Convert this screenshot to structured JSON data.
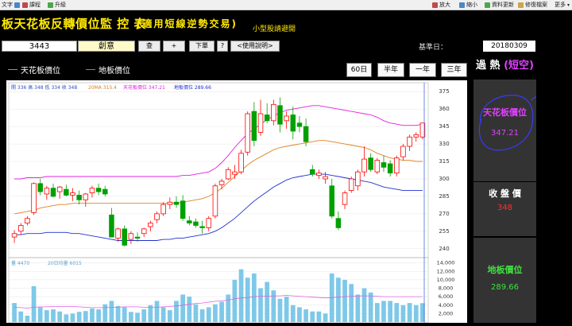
{
  "toolbar": {
    "left": [
      {
        "label": "文字",
        "color": "#4a86c8"
      },
      {
        "label": "課程",
        "color": "#c04a4a"
      },
      {
        "label": "升級",
        "color": "#4aa84a"
      }
    ],
    "right": [
      {
        "label": "放大",
        "color": "#c04a4a"
      },
      {
        "label": "縮小",
        "color": "#4a86c8"
      },
      {
        "label": "資料更新",
        "color": "#4aa84a"
      },
      {
        "label": "修復檔案",
        "color": "#c8a84a"
      },
      {
        "label": "更多"
      }
    ]
  },
  "title": {
    "main": "板天花板反轉價位監 控 表",
    "sub": "(適用短線逆勢交易)",
    "link": "小型股請避開"
  },
  "controls": {
    "code": "3443",
    "name": "創意",
    "btn_query": "查",
    "btn_add": "+",
    "btn_order": "下單",
    "btn_help_q": "?",
    "btn_manual": "<使用說明>",
    "base_label": "基準日：",
    "base_date": "20180309"
  },
  "legend": {
    "ceiling": "天花板價位",
    "floor": "地板價位",
    "ceiling_color": "#ff44ff",
    "floor_color": "#3a9ae0"
  },
  "periods": [
    "60日",
    "半年",
    "一年",
    "三年"
  ],
  "chart_info": {
    "ohlc": "開 336 高 348 低 334 收 348",
    "ma": "20MA 315.4",
    "ceil": "天花板價位 347.21",
    "floor": "地板價位 289.66",
    "vol": "量 4470",
    "vol_ma": "20日均量 6015"
  },
  "panel": {
    "mode_prefix": "過 熱",
    "mode_hl": "(短空)",
    "ceiling_label": "天花板價位",
    "ceiling_value": "347.21",
    "close_label": "收 盤 價",
    "close_value": "348",
    "floor_label": "地板價位",
    "floor_value": "289.66"
  },
  "chart_data": {
    "type": "candlestick",
    "price_ticks": [
      375,
      360,
      345,
      330,
      315,
      300,
      285,
      270,
      255,
      240
    ],
    "volume_ticks": [
      "14,000",
      "12,000",
      "10,000",
      "8,000",
      "6,000",
      "4,000",
      "2,000"
    ],
    "ylim_price": [
      233,
      382
    ],
    "ylim_volume": [
      0,
      14500
    ],
    "candles": [
      [
        250,
        256,
        245,
        253
      ],
      [
        255,
        262,
        252,
        260
      ],
      [
        262,
        268,
        260,
        266
      ],
      [
        271,
        297,
        269,
        296
      ],
      [
        296,
        300,
        286,
        289
      ],
      [
        287,
        294,
        282,
        292
      ],
      [
        292,
        296,
        284,
        285
      ],
      [
        289,
        294,
        283,
        293
      ],
      [
        291,
        295,
        285,
        286
      ],
      [
        286,
        292,
        281,
        288
      ],
      [
        286,
        290,
        278,
        282
      ],
      [
        282,
        288,
        276,
        287
      ],
      [
        288,
        294,
        284,
        292
      ],
      [
        292,
        296,
        286,
        289
      ],
      [
        291,
        294,
        285,
        287
      ],
      [
        269,
        275,
        250,
        250
      ],
      [
        249,
        258,
        246,
        257
      ],
      [
        257,
        260,
        242,
        243
      ],
      [
        248,
        255,
        244,
        253
      ],
      [
        250,
        254,
        246,
        249
      ],
      [
        253,
        258,
        250,
        257
      ],
      [
        259,
        264,
        255,
        262
      ],
      [
        265,
        272,
        262,
        270
      ],
      [
        270,
        280,
        268,
        278
      ],
      [
        278,
        284,
        274,
        280
      ],
      [
        280,
        285,
        275,
        278
      ],
      [
        281,
        286,
        264,
        266
      ],
      [
        264,
        268,
        260,
        262
      ],
      [
        263,
        266,
        258,
        260
      ],
      [
        259,
        264,
        253,
        258
      ],
      [
        258,
        268,
        255,
        266
      ],
      [
        268,
        296,
        266,
        294
      ],
      [
        295,
        300,
        291,
        298
      ],
      [
        300,
        310,
        299,
        308
      ],
      [
        304,
        312,
        300,
        306
      ],
      [
        306,
        325,
        304,
        322
      ],
      [
        323,
        358,
        320,
        356
      ],
      [
        358,
        366,
        328,
        333
      ],
      [
        340,
        368,
        337,
        356
      ],
      [
        355,
        365,
        348,
        350
      ],
      [
        350,
        368,
        346,
        364
      ],
      [
        363,
        370,
        340,
        347
      ],
      [
        350,
        358,
        343,
        354
      ],
      [
        355,
        362,
        334,
        341
      ],
      [
        348,
        354,
        340,
        345
      ],
      [
        345,
        352,
        328,
        332
      ],
      [
        308,
        312,
        302,
        304
      ],
      [
        303,
        308,
        300,
        305
      ],
      [
        300,
        306,
        296,
        302
      ],
      [
        294,
        300,
        266,
        268
      ],
      [
        266,
        272,
        256,
        258
      ],
      [
        278,
        290,
        274,
        288
      ],
      [
        290,
        302,
        288,
        300
      ],
      [
        294,
        308,
        290,
        306
      ],
      [
        306,
        328,
        302,
        317
      ],
      [
        318,
        322,
        306,
        308
      ],
      [
        306,
        318,
        304,
        316
      ],
      [
        314,
        320,
        306,
        310
      ],
      [
        313,
        316,
        302,
        305
      ],
      [
        305,
        320,
        302,
        318
      ],
      [
        319,
        330,
        316,
        328
      ],
      [
        328,
        338,
        324,
        336
      ],
      [
        336,
        340,
        332,
        338
      ],
      [
        336,
        348,
        334,
        348
      ]
    ],
    "ceiling": [
      300,
      300,
      301,
      301,
      301,
      302,
      302,
      302,
      302,
      302,
      302,
      302,
      302,
      302,
      302,
      302,
      302,
      302,
      302,
      302,
      302,
      302,
      302,
      302,
      302,
      302,
      303,
      303,
      304,
      305,
      306,
      309,
      314,
      320,
      327,
      333,
      339,
      343,
      347,
      351,
      354,
      357,
      359,
      360,
      361,
      362,
      363,
      363,
      362,
      361,
      360,
      359,
      358,
      357,
      356,
      355,
      353,
      350,
      348,
      347,
      346,
      346,
      346,
      347
    ],
    "ma20": [
      270,
      271,
      272,
      273,
      275,
      276,
      277,
      278,
      278,
      279,
      279,
      279,
      279,
      279,
      279,
      279,
      279,
      279,
      279,
      279,
      279,
      279,
      279,
      279,
      279,
      279,
      280,
      281,
      282,
      283,
      285,
      288,
      292,
      297,
      302,
      307,
      312,
      316,
      319,
      322,
      325,
      327,
      328,
      329,
      330,
      331,
      332,
      333,
      333,
      332,
      331,
      330,
      329,
      328,
      327,
      325,
      322,
      320,
      318,
      317,
      316,
      316,
      315,
      315
    ],
    "floor": [
      252,
      252,
      253,
      253,
      253,
      254,
      254,
      254,
      254,
      253,
      253,
      252,
      251,
      250,
      249,
      248,
      247,
      247,
      247,
      247,
      247,
      247,
      247,
      248,
      248,
      249,
      249,
      250,
      251,
      252,
      253,
      255,
      258,
      262,
      266,
      271,
      276,
      281,
      285,
      289,
      293,
      296,
      299,
      301,
      302,
      303,
      304,
      304,
      304,
      303,
      302,
      301,
      300,
      299,
      298,
      297,
      295,
      293,
      292,
      291,
      290,
      290,
      290,
      290
    ],
    "volume": [
      4500,
      2500,
      1500,
      8500,
      3500,
      2800,
      3000,
      2500,
      1800,
      2000,
      2400,
      2600,
      3200,
      3000,
      4200,
      5000,
      3800,
      3500,
      2400,
      2200,
      3000,
      4000,
      5000,
      3500,
      2800,
      5000,
      6500,
      6000,
      4200,
      3000,
      3500,
      4200,
      4800,
      6500,
      10000,
      12500,
      10500,
      11500,
      8000,
      9500,
      7500,
      5500,
      6000,
      4000,
      3500,
      3000,
      2500,
      2500,
      2000,
      11500,
      10500,
      10000,
      9000,
      6500,
      8000,
      7000,
      4500,
      5000,
      5000,
      4500,
      4000,
      4500,
      4000,
      4470
    ],
    "volume_ma": [
      3500,
      3400,
      3300,
      3500,
      3600,
      3600,
      3700,
      3700,
      3700,
      3700,
      3600,
      3500,
      3400,
      3400,
      3400,
      3500,
      3500,
      3600,
      3600,
      3600,
      3500,
      3500,
      3500,
      3600,
      3700,
      3800,
      4000,
      4200,
      4400,
      4500,
      4700,
      4900,
      5000,
      5200,
      5500,
      5700,
      5800,
      6000,
      6100,
      6100,
      6200,
      6200,
      6300,
      6200,
      6100,
      6000,
      5900,
      5800,
      5700,
      5800,
      5900,
      6000,
      6100,
      6200,
      6200,
      6200,
      6100,
      6000,
      6000,
      6000,
      6000,
      6000,
      6000,
      6015
    ]
  }
}
